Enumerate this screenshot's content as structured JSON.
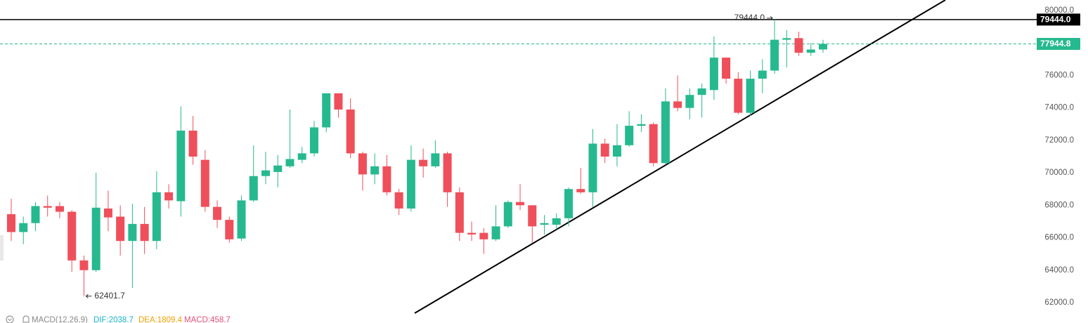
{
  "chart_data": {
    "type": "candlestick",
    "up_color": "#26b98f",
    "down_color": "#ef4f5a",
    "ylim": [
      61350,
      80650
    ],
    "yticks": [
      {
        "value": 62000,
        "label": "62000.0"
      },
      {
        "value": 64000,
        "label": "64000.0"
      },
      {
        "value": 66000,
        "label": "66000.0"
      },
      {
        "value": 68000,
        "label": "68000.0"
      },
      {
        "value": 70000,
        "label": "70000.0"
      },
      {
        "value": 72000,
        "label": "72000.0"
      },
      {
        "value": 74000,
        "label": "74000.0"
      },
      {
        "value": 76000,
        "label": "76000.0"
      },
      {
        "value": 78000,
        "label": "78000.0"
      },
      {
        "value": 80000,
        "label": "80000.0"
      }
    ],
    "grid": false,
    "open": [
      67450,
      66350,
      66900,
      67950,
      67950,
      67600,
      64600,
      64000,
      67800,
      67300,
      65800,
      66850,
      65800,
      68800,
      68250,
      72600,
      70800,
      67900,
      67100,
      65950,
      68300,
      69800,
      70050,
      70400,
      70800,
      71200,
      72800,
      74900,
      73900,
      71200,
      69900,
      70400,
      68800,
      67800,
      70800,
      70400,
      71200,
      68800,
      66300,
      66300,
      65900,
      66700,
      68200,
      68000,
      66800,
      66800,
      67200,
      69000,
      68800,
      71800,
      71000,
      71700,
      72900,
      73000,
      70600,
      74400,
      74000,
      74800,
      75100,
      77100,
      75800,
      73700,
      75800,
      76300,
      78200,
      78300,
      77400,
      77600
    ],
    "high": [
      68400,
      67300,
      68200,
      68600,
      68200,
      67700,
      64900,
      70000,
      68900,
      68000,
      68100,
      67900,
      70100,
      69300,
      74100,
      73500,
      71400,
      68300,
      67300,
      68600,
      71700,
      71300,
      71100,
      73900,
      71600,
      73200,
      74900,
      74900,
      74600,
      71300,
      71200,
      71100,
      69000,
      71700,
      71500,
      72000,
      71300,
      69100,
      67000,
      66600,
      68000,
      68300,
      69300,
      68000,
      67400,
      67500,
      69100,
      70300,
      72700,
      72100,
      73000,
      73800,
      73600,
      73100,
      75200,
      76000,
      75200,
      75500,
      78400,
      77100,
      76200,
      76300,
      77000,
      79444,
      78800,
      78700,
      78000,
      78200
    ],
    "low": [
      65800,
      65600,
      66400,
      67300,
      67200,
      63900,
      62401.7,
      63900,
      66400,
      64900,
      62900,
      65000,
      65300,
      67800,
      67300,
      70500,
      67600,
      66600,
      65700,
      65800,
      68200,
      69300,
      69100,
      70300,
      70600,
      71000,
      72500,
      73400,
      70900,
      68900,
      69300,
      68600,
      67400,
      67600,
      69700,
      70300,
      67900,
      65800,
      65800,
      65000,
      65800,
      66600,
      67700,
      65700,
      66200,
      66500,
      66700,
      68700,
      67900,
      70600,
      70400,
      71600,
      72500,
      70400,
      70500,
      73800,
      73300,
      73400,
      74500,
      75500,
      73600,
      73500,
      74900,
      76100,
      76500,
      77200,
      77200,
      77400
    ],
    "close": [
      66350,
      66900,
      67950,
      67850,
      67600,
      64600,
      64000,
      67850,
      67250,
      65800,
      66850,
      65800,
      68800,
      68300,
      72600,
      71000,
      67900,
      67100,
      65900,
      68300,
      69800,
      70150,
      70450,
      70850,
      71200,
      72800,
      74900,
      73900,
      71200,
      69900,
      70400,
      68800,
      67800,
      70800,
      70400,
      71200,
      68800,
      66300,
      66200,
      65900,
      66700,
      68200,
      68000,
      66700,
      66900,
      67200,
      69000,
      68800,
      71800,
      71000,
      71700,
      72900,
      73000,
      70600,
      74400,
      74000,
      74800,
      75200,
      77100,
      75800,
      73700,
      75800,
      76300,
      78200,
      78300,
      77400,
      77600,
      77944.8
    ],
    "price_lines": [
      {
        "value": 79444,
        "label": "79444.0",
        "color": "#000000",
        "dashed": false
      },
      {
        "value": 77944.8,
        "label": "77944.8",
        "color": "#26b98f",
        "dashed": true
      }
    ],
    "extremes": {
      "high": {
        "value": 79444,
        "label": "79444.0"
      },
      "low": {
        "value": 62401.7,
        "label": "62401.7"
      }
    },
    "indicator": {
      "label": "MACD(12,26,9)",
      "values": [
        {
          "value": 2038.7,
          "label": "DIF:2038.7",
          "color": "#19b3c6"
        },
        {
          "value": 1809.4,
          "label": "DEA:1809.4",
          "color": "#f0a000"
        },
        {
          "value": 458.7,
          "label": "MACD:458.7",
          "color": "#e0507a"
        }
      ]
    }
  }
}
